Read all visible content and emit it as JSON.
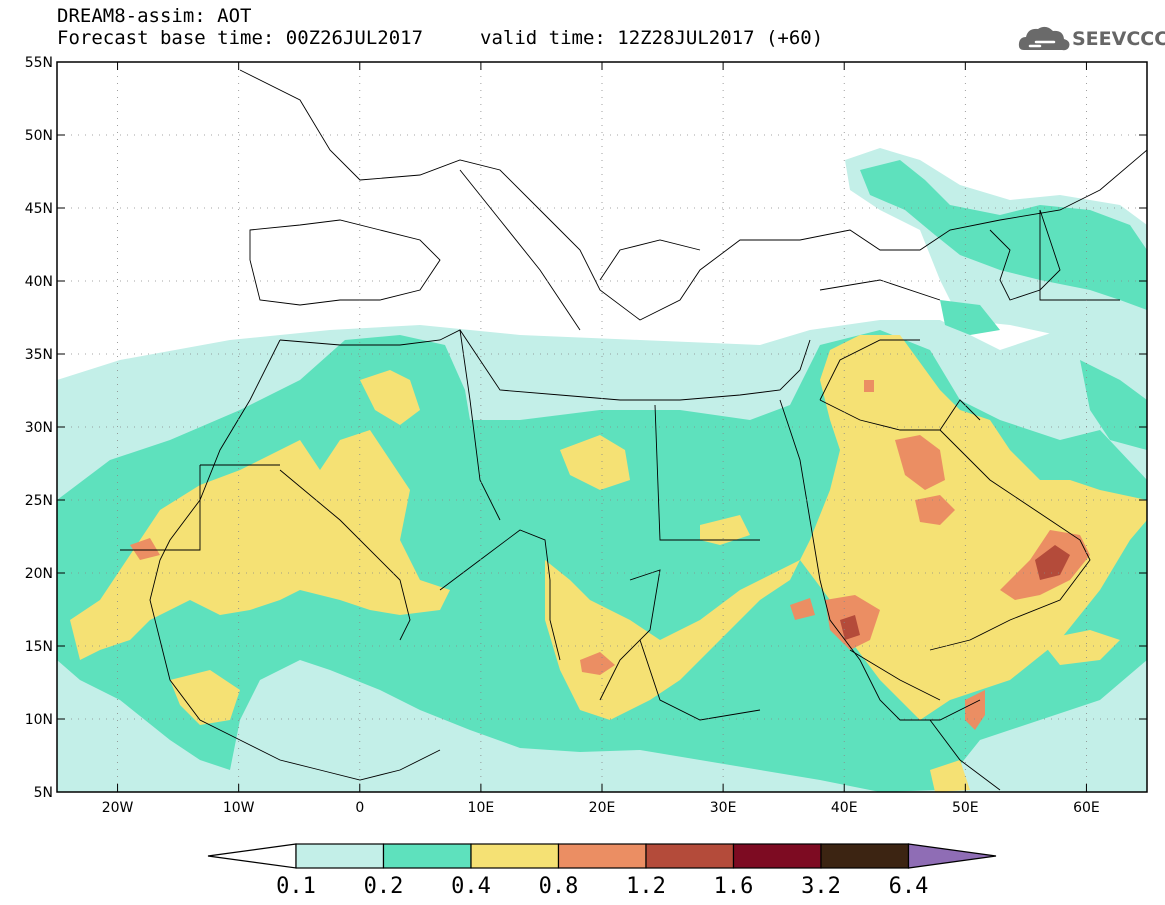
{
  "header": {
    "line1": "DREAM8-assim: AOT",
    "base_time": "Forecast base time: 00Z26JUL2017",
    "valid_time": "valid time: 12Z28JUL2017 (+60)"
  },
  "logo": {
    "text": "SEEVCCC",
    "icon": "cloud-icon"
  },
  "map": {
    "lon_range": [
      -25,
      65
    ],
    "lat_range": [
      5,
      55
    ],
    "lat_ticks": [
      "55N",
      "50N",
      "45N",
      "40N",
      "35N",
      "30N",
      "25N",
      "20N",
      "15N",
      "10N",
      "5N"
    ],
    "lon_ticks": [
      "20W",
      "10W",
      "0",
      "10E",
      "20E",
      "30E",
      "40E",
      "50E",
      "60E"
    ]
  },
  "colorbar": {
    "levels": [
      "0.1",
      "0.2",
      "0.4",
      "0.8",
      "1.2",
      "1.6",
      "3.2",
      "6.4"
    ],
    "colors": {
      "under": "#ffffff",
      "c1": "#c3efe8",
      "c2": "#5ee1bd",
      "c3": "#f5e174",
      "c4": "#eb8e63",
      "c5": "#b44b3a",
      "c6": "#7d0b22",
      "c7": "#3c2412",
      "over": "#8f6db5"
    }
  }
}
